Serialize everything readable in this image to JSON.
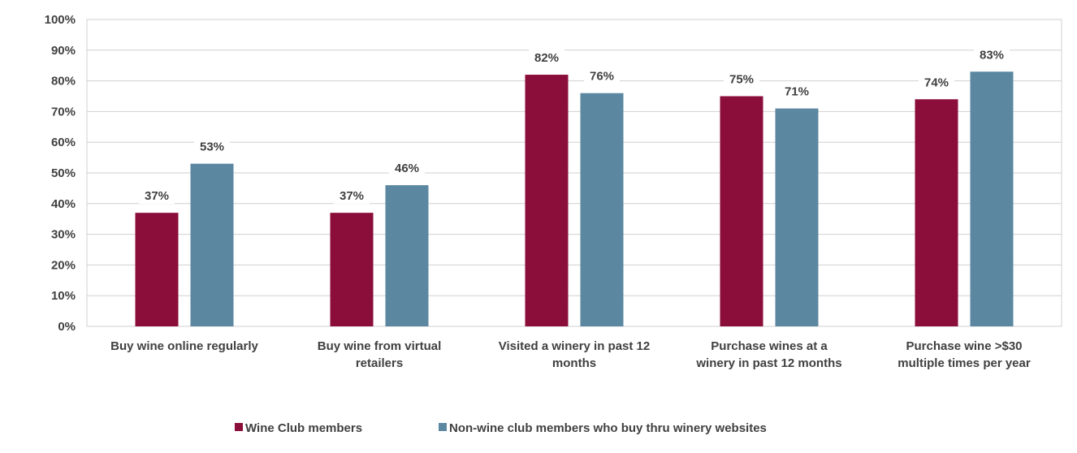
{
  "chart_data": {
    "type": "bar",
    "categories": [
      [
        "Buy wine online regularly"
      ],
      [
        "Buy wine from virtual",
        "retailers"
      ],
      [
        "Visited a winery in past 12",
        "months"
      ],
      [
        "Purchase wines at a",
        "winery in past 12 months"
      ],
      [
        "Purchase wine >$30",
        "multiple times per year"
      ]
    ],
    "series": [
      {
        "name": "Wine Club members",
        "color": "#8b0d3a",
        "values": [
          37,
          37,
          82,
          75,
          74
        ]
      },
      {
        "name": "Non-wine club members who buy thru winery websites",
        "color": "#5b87a1",
        "values": [
          53,
          46,
          76,
          71,
          83
        ]
      }
    ],
    "ylim": [
      0,
      100
    ],
    "yticks": [
      "0%",
      "10%",
      "20%",
      "30%",
      "40%",
      "50%",
      "60%",
      "70%",
      "80%",
      "90%",
      "100%"
    ],
    "value_suffix": "%",
    "grid": true,
    "legend_position": "bottom",
    "title": "",
    "xlabel": "",
    "ylabel": ""
  }
}
